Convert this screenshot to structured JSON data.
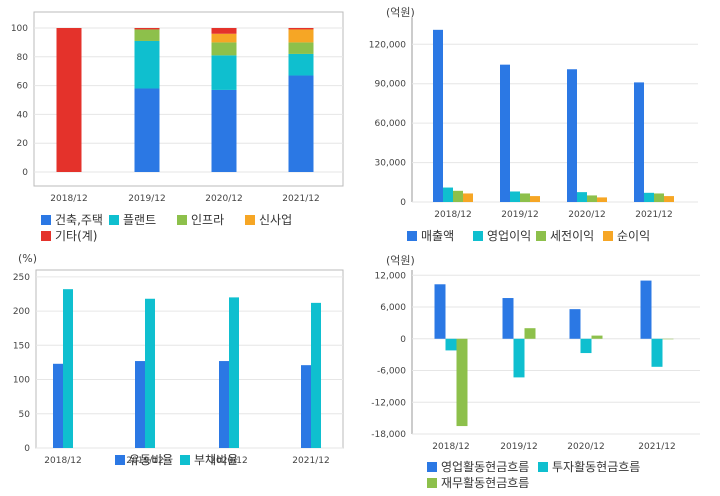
{
  "colors": {
    "blue": "#2b78e4",
    "cyan": "#0fbfcf",
    "green": "#8dc04b",
    "orange": "#f6a625",
    "red": "#e4322b",
    "grid": "#e6e6e6",
    "axis": "#999999",
    "frame": "#bbbbbb"
  },
  "chart_data": [
    {
      "type": "bar",
      "stacked": true,
      "title": "",
      "unit": "",
      "categories": [
        "2018/12",
        "2019/12",
        "2020/12",
        "2021/12"
      ],
      "series": [
        {
          "name": "건축,주택",
          "color": "blue",
          "values": [
            0,
            58,
            57,
            67
          ]
        },
        {
          "name": "플랜트",
          "color": "cyan",
          "values": [
            0,
            33,
            24,
            15
          ]
        },
        {
          "name": "인프라",
          "color": "green",
          "values": [
            0,
            8,
            9,
            8
          ]
        },
        {
          "name": "신사업",
          "color": "orange",
          "values": [
            0,
            0,
            6,
            9
          ]
        },
        {
          "name": "기타(계)",
          "color": "red",
          "values": [
            100,
            1,
            4,
            1
          ]
        }
      ],
      "yticks": [
        0,
        20,
        40,
        60,
        80,
        100
      ],
      "ylim": [
        0,
        100
      ],
      "grid": true,
      "legend_position": "bottom"
    },
    {
      "type": "bar",
      "title": "",
      "unit": "(억원)",
      "categories": [
        "2018/12",
        "2019/12",
        "2020/12",
        "2021/12"
      ],
      "series": [
        {
          "name": "매출액",
          "color": "blue",
          "values": [
            131000,
            104500,
            101000,
            91000
          ]
        },
        {
          "name": "영업이익",
          "color": "cyan",
          "values": [
            11000,
            8000,
            7500,
            7000
          ]
        },
        {
          "name": "세전이익",
          "color": "green",
          "values": [
            8500,
            6500,
            5000,
            6500
          ]
        },
        {
          "name": "순이익",
          "color": "orange",
          "values": [
            6500,
            4500,
            3500,
            4500
          ]
        }
      ],
      "yticks": [
        "0",
        "30,000",
        "60,000",
        "90,000",
        "120,000"
      ],
      "ylim": [
        0,
        140000
      ],
      "grid": true,
      "legend_position": "bottom"
    },
    {
      "type": "bar",
      "title": "",
      "unit": "(%)",
      "categories": [
        "2018/12",
        "2019/12",
        "2020/12",
        "2021/12"
      ],
      "series": [
        {
          "name": "유동비율",
          "color": "blue",
          "values": [
            123,
            127,
            127,
            121
          ]
        },
        {
          "name": "부채비율",
          "color": "cyan",
          "values": [
            232,
            218,
            220,
            212
          ]
        }
      ],
      "yticks": [
        "0",
        "50",
        "100",
        "150",
        "200",
        "250"
      ],
      "ylim": [
        0,
        260
      ],
      "grid": true,
      "legend_position": "bottom"
    },
    {
      "type": "bar",
      "title": "",
      "unit": "(억원)",
      "categories": [
        "2018/12",
        "2019/12",
        "2020/12",
        "2021/12"
      ],
      "series": [
        {
          "name": "영업활동현금흐름",
          "color": "blue",
          "values": [
            10300,
            7700,
            5600,
            11000
          ]
        },
        {
          "name": "투자활동현금흐름",
          "color": "cyan",
          "values": [
            -2200,
            -7300,
            -2700,
            -5300
          ]
        },
        {
          "name": "재무활동현금흐름",
          "color": "green",
          "values": [
            -16500,
            2000,
            600,
            0
          ]
        }
      ],
      "yticks": [
        "-18,000",
        "-12,000",
        "-6,000",
        "0",
        "6,000",
        "12,000"
      ],
      "ylim": [
        -18000,
        13000
      ],
      "grid": true,
      "legend_position": "bottom"
    }
  ]
}
